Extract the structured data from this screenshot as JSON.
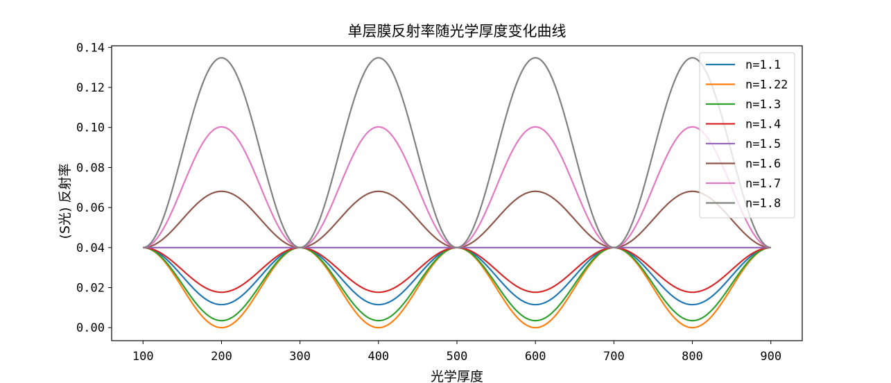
{
  "chart_data": {
    "type": "line",
    "title": "单层膜反射率随光学厚度变化曲线",
    "xlabel": "光学厚度",
    "ylabel": "(S光) 反射率",
    "xlim": [
      60,
      940
    ],
    "ylim": [
      -0.0065,
      0.1408
    ],
    "x_ticks": [
      100,
      200,
      300,
      400,
      500,
      600,
      700,
      800,
      900
    ],
    "x_tick_labels": [
      "100",
      "200",
      "300",
      "400",
      "500",
      "600",
      "700",
      "800",
      "900"
    ],
    "y_ticks": [
      0.0,
      0.02,
      0.04,
      0.06,
      0.08,
      0.1,
      0.12,
      0.14
    ],
    "y_tick_labels": [
      "0.00",
      "0.02",
      "0.04",
      "0.06",
      "0.08",
      "0.10",
      "0.12",
      "0.14"
    ],
    "x_range": [
      100,
      900
    ],
    "half_wave_thickness": 200,
    "substrate_reflectance": 0.04,
    "grid": false,
    "legend_position": "top-right",
    "series": [
      {
        "name": "n=1.1",
        "color": "#1f77b4",
        "min_reflectance_at_quarter_wave": 0.0115
      },
      {
        "name": "n=1.22",
        "color": "#ff7f0e",
        "min_reflectance_at_quarter_wave": 0.0
      },
      {
        "name": "n=1.3",
        "color": "#2ca02c",
        "min_reflectance_at_quarter_wave": 0.0035
      },
      {
        "name": "n=1.4",
        "color": "#d62728",
        "min_reflectance_at_quarter_wave": 0.0177
      },
      {
        "name": "n=1.5",
        "color": "#9467bd",
        "min_reflectance_at_quarter_wave": 0.04
      },
      {
        "name": "n=1.6",
        "color": "#8c564b",
        "min_reflectance_at_quarter_wave": 0.0681
      },
      {
        "name": "n=1.7",
        "color": "#e377c2",
        "min_reflectance_at_quarter_wave": 0.1003
      },
      {
        "name": "n=1.8",
        "color": "#7f7f7f",
        "min_reflectance_at_quarter_wave": 0.1348
      }
    ]
  }
}
